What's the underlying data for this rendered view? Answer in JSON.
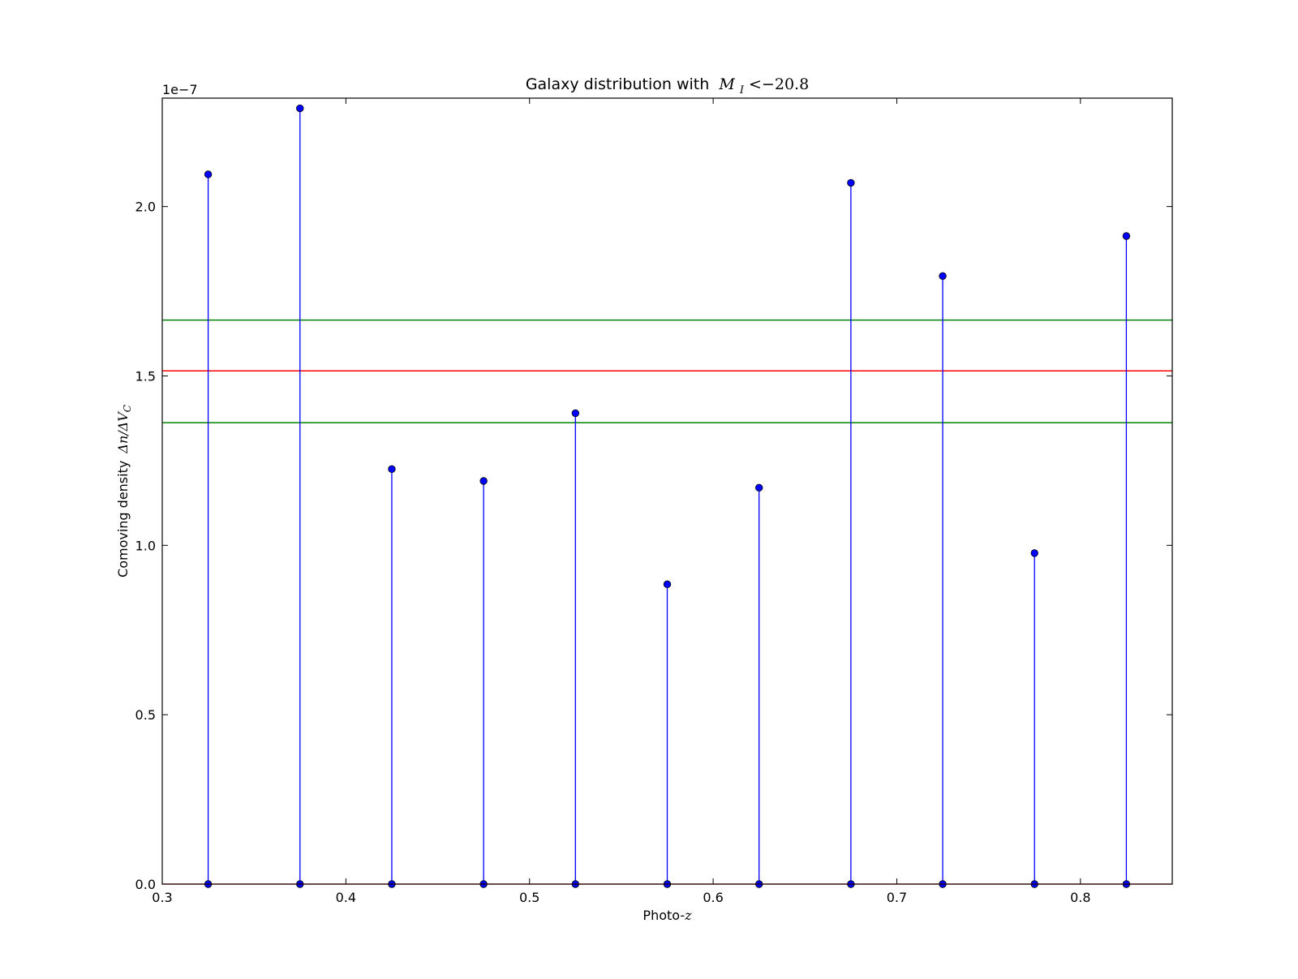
{
  "chart_data": {
    "type": "stem",
    "title": "Galaxy distribution with",
    "title_math": "M_I < −20.8",
    "title_math_parts": {
      "var": "M",
      "sub": "I",
      "rel": " <−20.8"
    },
    "xlabel": "Photo-",
    "xlabel_math": "z",
    "ylabel": "Comoving density",
    "ylabel_math": "Δn/ΔV",
    "ylabel_math_sub": "C",
    "y_offset_label": "1e−7",
    "xlim": [
      0.3,
      0.85
    ],
    "ylim": [
      0.0,
      2.32
    ],
    "x_ticks": [
      0.3,
      0.4,
      0.5,
      0.6,
      0.7,
      0.8
    ],
    "x_tick_labels": [
      "0.3",
      "0.4",
      "0.5",
      "0.6",
      "0.7",
      "0.8"
    ],
    "y_ticks": [
      0.0,
      0.5,
      1.0,
      1.5,
      2.0
    ],
    "y_tick_labels": [
      "0.0",
      "0.5",
      "1.0",
      "1.5",
      "2.0"
    ],
    "series": [
      {
        "color": "#0000ff",
        "x": [
          0.325,
          0.375,
          0.425,
          0.475,
          0.525,
          0.575,
          0.625,
          0.675,
          0.725,
          0.775,
          0.825
        ],
        "values": [
          2.095,
          2.29,
          1.225,
          1.19,
          1.39,
          0.885,
          1.17,
          2.07,
          1.795,
          0.977,
          1.913
        ]
      }
    ],
    "hlines": [
      {
        "y": 1.665,
        "color": "#008000"
      },
      {
        "y": 1.515,
        "color": "#ff0000"
      },
      {
        "y": 1.362,
        "color": "#008000"
      }
    ],
    "grid": false
  }
}
